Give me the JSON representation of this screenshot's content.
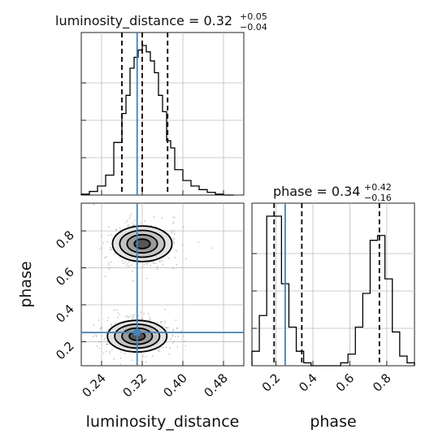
{
  "chart_data": {
    "type": "corner",
    "parameters": [
      "luminosity_distance",
      "phase"
    ],
    "titles": {
      "luminosity_distance": {
        "prefix": "luminosity_distance = ",
        "median": "0.32",
        "plus": "+0.05",
        "minus": "−0.04"
      },
      "phase": {
        "prefix": "phase = ",
        "median": "0.34",
        "plus": "+0.42",
        "minus": "−0.16"
      }
    },
    "axis_labels": {
      "x_left": "luminosity_distance",
      "x_right": "phase",
      "y_lower": "phase"
    },
    "ranges": {
      "luminosity_distance": [
        0.2,
        0.52
      ],
      "phase": [
        0.07,
        0.95
      ]
    },
    "ticks": {
      "luminosity_distance": [
        0.24,
        0.32,
        0.4,
        0.48
      ],
      "phase": [
        0.2,
        0.4,
        0.6,
        0.8
      ]
    },
    "tick_labels": {
      "luminosity_distance": [
        "0.24",
        "0.32",
        "0.40",
        "0.48"
      ],
      "phase": [
        "0.2",
        "0.4",
        "0.6",
        "0.8"
      ]
    },
    "truth": {
      "luminosity_distance": 0.31,
      "phase": 0.25
    },
    "quantiles": {
      "luminosity_distance": [
        0.28,
        0.32,
        0.37
      ],
      "phase": [
        0.19,
        0.34,
        0.76
      ]
    },
    "hist_luminosity_distance": {
      "bin_edges": [
        0.2,
        0.216,
        0.232,
        0.248,
        0.264,
        0.28,
        0.288,
        0.296,
        0.304,
        0.312,
        0.32,
        0.328,
        0.336,
        0.344,
        0.352,
        0.36,
        0.368,
        0.376,
        0.384,
        0.4,
        0.416,
        0.432,
        0.448,
        0.464,
        0.48,
        0.5
      ],
      "counts": [
        1,
        4,
        10,
        22,
        58,
        90,
        110,
        140,
        152,
        160,
        165,
        158,
        148,
        135,
        110,
        92,
        60,
        52,
        28,
        16,
        10,
        6,
        3,
        1,
        0
      ]
    },
    "hist_phase": {
      "bin_edges": [
        0.07,
        0.11,
        0.15,
        0.19,
        0.23,
        0.27,
        0.31,
        0.35,
        0.39,
        0.43,
        0.47,
        0.51,
        0.55,
        0.59,
        0.63,
        0.67,
        0.71,
        0.75,
        0.79,
        0.83,
        0.87,
        0.91,
        0.95
      ],
      "counts": [
        15,
        52,
        155,
        155,
        85,
        40,
        15,
        3,
        0,
        0,
        0,
        0,
        3,
        12,
        40,
        75,
        130,
        135,
        90,
        35,
        10,
        3
      ]
    },
    "density_2d": {
      "modes": [
        {
          "luminosity_distance": 0.32,
          "phase": 0.73,
          "sigma_x": 0.026,
          "sigma_y": 0.045
        },
        {
          "luminosity_distance": 0.31,
          "phase": 0.23,
          "sigma_x": 0.026,
          "sigma_y": 0.04
        }
      ],
      "contour_levels": 4
    },
    "grid": true
  }
}
